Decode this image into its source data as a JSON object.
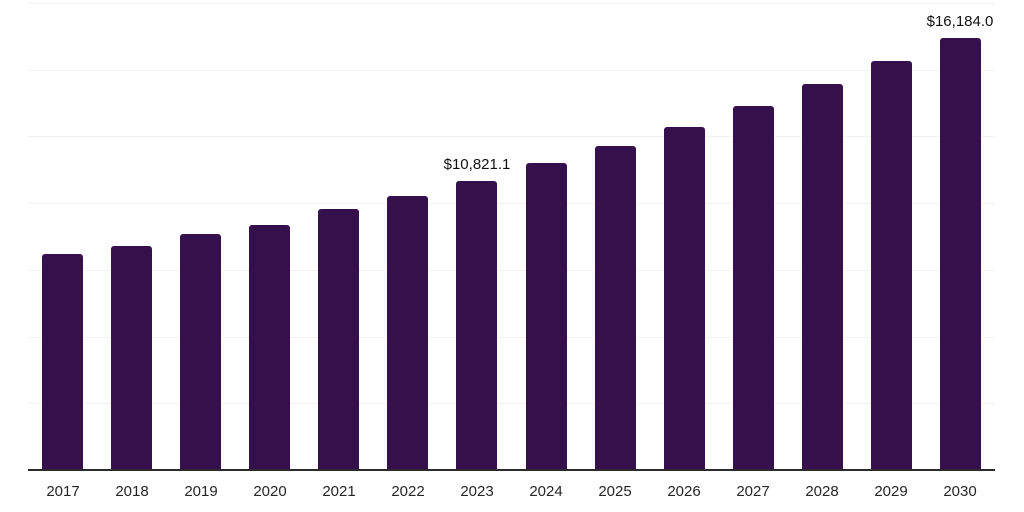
{
  "chart_data": {
    "type": "bar",
    "title": "",
    "xlabel": "",
    "ylabel": "",
    "categories": [
      "2017",
      "2018",
      "2019",
      "2020",
      "2021",
      "2022",
      "2023",
      "2024",
      "2025",
      "2026",
      "2027",
      "2028",
      "2029",
      "2030"
    ],
    "values": [
      8100,
      8410,
      8850,
      9190,
      9790,
      10280,
      10821.1,
      11500,
      12150,
      12870,
      13630,
      14450,
      15320,
      16184.0
    ],
    "data_labels": {
      "2023": "$10,821.1",
      "2030": "$16,184.0"
    },
    "ylim": [
      0,
      17500
    ],
    "gridline_interval": 2500,
    "grid": true,
    "legend": false,
    "colors": {
      "bar": "#36104D",
      "axis_line": "#2B2B2B",
      "gridline": "#F1F1F1",
      "tick_label": "#262626",
      "data_label": "#111111"
    }
  }
}
